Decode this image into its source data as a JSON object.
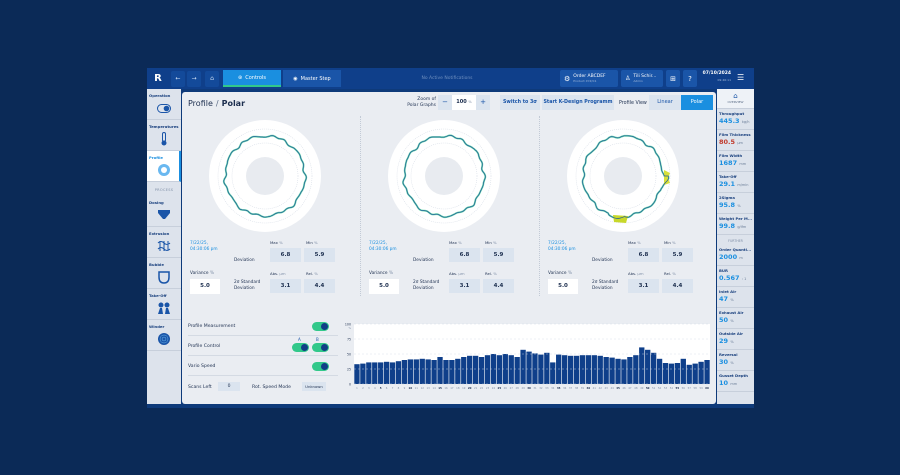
{
  "topbar": {
    "logo": "R",
    "back_icon": "←",
    "forward_icon": "→",
    "home_icon": "⌂",
    "tabs": [
      {
        "label": "Controls",
        "icon": "controls-icon",
        "active": true
      },
      {
        "label": "Master Step",
        "icon": "record-icon",
        "active": false
      }
    ],
    "notifications": "No Active Notifications",
    "order": {
      "title": "Order ABCDEF",
      "subtitle": "Product XYZ/C1"
    },
    "user": {
      "name": "Tili Schir...",
      "role": "Admin"
    },
    "apps_icon": "⊞",
    "help_icon": "?",
    "date": "07/10/2024",
    "time": "09:46:11",
    "menu_icon": "☰"
  },
  "left_nav": {
    "items": [
      {
        "label": "Operation",
        "icon": "toggle-icon"
      },
      {
        "label": "Temperatures",
        "icon": "thermometer-icon"
      },
      {
        "label": "Profile",
        "icon": "profile-icon",
        "active": true
      }
    ],
    "section": "PROCESS",
    "process_items": [
      {
        "label": "Dosing",
        "icon": "hopper-icon"
      },
      {
        "label": "Extrusion",
        "icon": "extrusion-icon"
      },
      {
        "label": "Bubble",
        "icon": "bubble-icon"
      },
      {
        "label": "Take-Off",
        "icon": "takeoff-icon"
      },
      {
        "label": "Winder",
        "icon": "winder-icon"
      }
    ]
  },
  "header": {
    "breadcrumb_parent": "Profile",
    "breadcrumb_sep": "/",
    "breadcrumb_current": "Polar",
    "zoom_label_1": "Zoom of",
    "zoom_label_2": "Polar Graphs",
    "zoom_minus": "−",
    "zoom_value": "100",
    "zoom_unit": "%",
    "zoom_plus": "+",
    "switch_button": "Switch to 3σ",
    "kdesign_button": "Start K-Design Programm",
    "profile_view_label": "Profile View",
    "view_linear": "Linear",
    "view_polar": "Polar"
  },
  "polar_panels": [
    {
      "timestamp_1": "7/22/25,",
      "timestamp_2": "04:30:06 pm",
      "deviation_label": "Deviation",
      "max_label": "Max",
      "min_label": "Min",
      "pct": "%",
      "max": "6.8",
      "min": "5.9",
      "variance_label": "Variance",
      "variance": "5.0",
      "sd_label_1": "2σ Standard",
      "sd_label_2": "Deviation",
      "abs_label": "Abs.",
      "abs_unit": "µm",
      "rel_label": "Rel.",
      "abs": "3.1",
      "rel": "4.4"
    },
    {
      "timestamp_1": "7/22/25,",
      "timestamp_2": "04:30:06 pm",
      "deviation_label": "Deviation",
      "max_label": "Max",
      "min_label": "Min",
      "pct": "%",
      "max": "6.8",
      "min": "5.9",
      "variance_label": "Variance",
      "variance": "5.0",
      "sd_label_1": "2σ Standard",
      "sd_label_2": "Deviation",
      "abs_label": "Abs.",
      "abs_unit": "µm",
      "rel_label": "Rel.",
      "abs": "3.1",
      "rel": "4.4"
    },
    {
      "timestamp_1": "7/22/25,",
      "timestamp_2": "04:30:06 pm",
      "deviation_label": "Deviation",
      "max_label": "Max",
      "min_label": "Min",
      "pct": "%",
      "max": "6.8",
      "min": "5.9",
      "variance_label": "Variance",
      "variance": "5.0",
      "sd_label_1": "2σ Standard",
      "sd_label_2": "Deviation",
      "abs_label": "Abs.",
      "abs_unit": "µm",
      "rel_label": "Rel.",
      "abs": "3.1",
      "rel": "4.4"
    }
  ],
  "controls": {
    "profile_measurement": "Profile Measurement",
    "profile_control": "Profile Control",
    "mark_a": "A",
    "mark_b": "B",
    "vario_speed": "Vario Speed",
    "scans_left_label": "Scans Left",
    "scans_left": "0",
    "rot_speed_label": "Rot. Speed Mode",
    "rot_speed_value": "Unknown"
  },
  "chart_data": {
    "type": "bar",
    "title": "",
    "xlabel": "",
    "ylabel": "%",
    "ylim": [
      0,
      100
    ],
    "yticks": [
      "0",
      "25",
      "50",
      "75",
      "100"
    ],
    "categories": [
      1,
      2,
      3,
      4,
      5,
      6,
      7,
      8,
      9,
      10,
      11,
      12,
      13,
      14,
      15,
      16,
      17,
      18,
      19,
      20,
      21,
      22,
      23,
      24,
      25,
      26,
      27,
      28,
      29,
      30,
      31,
      32,
      33,
      34,
      35,
      36,
      37,
      38,
      39,
      40,
      41,
      42,
      43,
      44,
      45,
      46,
      47,
      48,
      49,
      50,
      51,
      52,
      53,
      54,
      55,
      56,
      57,
      58,
      59,
      60
    ],
    "values": [
      33,
      34,
      36,
      36,
      36,
      37,
      36,
      38,
      40,
      41,
      41,
      42,
      41,
      40,
      45,
      40,
      40,
      42,
      45,
      47,
      47,
      45,
      48,
      50,
      48,
      50,
      48,
      45,
      57,
      54,
      51,
      49,
      52,
      36,
      49,
      48,
      47,
      47,
      48,
      48,
      48,
      47,
      45,
      44,
      42,
      41,
      45,
      48,
      61,
      57,
      52,
      42,
      35,
      34,
      35,
      42,
      32,
      34,
      37,
      40
    ],
    "color": "#0f3f8a"
  },
  "right_nav": {
    "overview_icon": "⌂",
    "overview_label": "OVERVIEW",
    "items": [
      {
        "label": "Throughput",
        "value": "445.3",
        "unit": "kg/h",
        "color": "#1a8fe0"
      },
      {
        "label": "Film Thickness",
        "value": "80.5",
        "unit": "µm",
        "color": "#c0392b"
      },
      {
        "label": "Film Width",
        "value": "1687",
        "unit": "mm",
        "color": "#1a8fe0"
      },
      {
        "label": "Take-Off",
        "value": "29.1",
        "unit": "m/min",
        "color": "#1a8fe0"
      },
      {
        "label": "2Sigma",
        "value": "95.8",
        "unit": "%",
        "color": "#1a8fe0"
      },
      {
        "label": "Weight Per M...",
        "value": "99.8",
        "unit": "g/lfm",
        "color": "#1a8fe0"
      }
    ],
    "section": "FURTHER",
    "further": [
      {
        "label": "Order Quanti...",
        "value": "2000",
        "unit": "m"
      },
      {
        "label": "BUR",
        "value": "0.567",
        "unit": ": 1"
      },
      {
        "label": "Inlet Air",
        "value": "47",
        "unit": "%"
      },
      {
        "label": "Exhaust Air",
        "value": "50",
        "unit": "%"
      },
      {
        "label": "Outside Air",
        "value": "29",
        "unit": "%"
      },
      {
        "label": "Reversal",
        "value": "30",
        "unit": "%"
      },
      {
        "label": "Gusset Depth",
        "value": "10",
        "unit": "mm"
      }
    ]
  }
}
